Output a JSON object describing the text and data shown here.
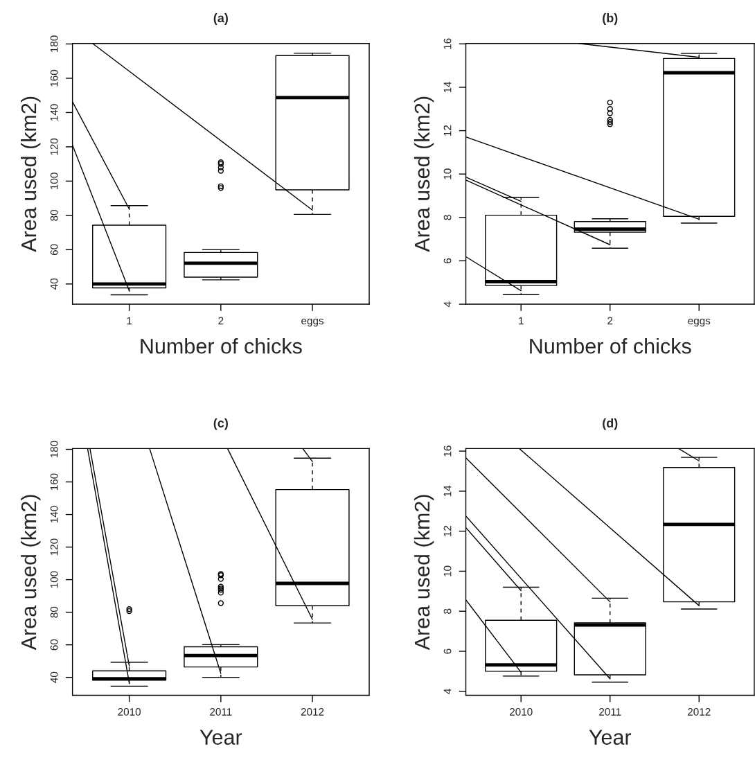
{
  "chart_data": [
    {
      "type": "box",
      "title": "(a)",
      "xlabel": "Number of chicks",
      "ylabel": "Area used (km2)",
      "x": [
        1,
        2,
        3
      ],
      "xlim": [
        0.38,
        3.62
      ],
      "xticks": [
        {
          "value": 1,
          "label": "1"
        },
        {
          "value": 2,
          "label": "2"
        },
        {
          "value": 3,
          "label": "eggs"
        }
      ],
      "ylim": [
        28.2,
        180.3
      ],
      "yticks": [
        40,
        60,
        80,
        100,
        120,
        140,
        160,
        180
      ],
      "boxes": [
        {
          "low": 33.7,
          "q1": 37.7,
          "median": 40,
          "q3": 74.3,
          "high": 85.7
        },
        {
          "low": 42.4,
          "q1": 44,
          "median": 52.1,
          "q3": 58.4,
          "high": 60,
          "outliers": [
            111,
            110,
            108,
            106,
            97,
            96
          ]
        },
        {
          "low": 80.6,
          "q1": 94.9,
          "median": 148.7,
          "q3": 173.2,
          "high": 174.6
        }
      ],
      "series": [
        {
          "type": "line",
          "color": "#000000",
          "x": [
            0.6,
            3
          ],
          "values": [
            180.3,
            83.1
          ]
        },
        {
          "type": "line",
          "color": "#000000",
          "x": [
            0.38,
            1
          ],
          "values": [
            146.3,
            83.7
          ]
        },
        {
          "type": "line",
          "color": "#000000",
          "x": [
            0.38,
            1
          ],
          "values": [
            121,
            36
          ]
        }
      ]
    },
    {
      "type": "box",
      "title": "(b)",
      "xlabel": "Number of chicks",
      "ylabel": "Area used (km2)",
      "x": [
        1,
        2,
        3
      ],
      "xlim": [
        0.38,
        3.62
      ],
      "xticks": [
        {
          "value": 1,
          "label": "1"
        },
        {
          "value": 2,
          "label": "2"
        },
        {
          "value": 3,
          "label": "eggs"
        }
      ],
      "ylim": [
        4,
        16.02
      ],
      "yticks": [
        4,
        6,
        8,
        10,
        12,
        14,
        16
      ],
      "boxes": [
        {
          "low": 4.44,
          "q1": 4.86,
          "median": 5.04,
          "q3": 8.1,
          "high": 8.92
        },
        {
          "low": 6.58,
          "q1": 7.32,
          "median": 7.46,
          "q3": 7.81,
          "high": 7.94,
          "outliers": [
            13.3,
            13.0,
            12.8,
            12.5,
            12.4,
            12.3
          ]
        },
        {
          "low": 7.74,
          "q1": 8.05,
          "median": 14.67,
          "q3": 15.33,
          "high": 15.56
        }
      ],
      "series": [
        {
          "type": "line",
          "color": "#000000",
          "x": [
            1.65,
            3
          ],
          "values": [
            16.02,
            15.38
          ]
        },
        {
          "type": "line",
          "color": "#000000",
          "x": [
            0.38,
            3
          ],
          "values": [
            11.71,
            7.92
          ]
        },
        {
          "type": "line",
          "color": "#000000",
          "x": [
            0.38,
            1
          ],
          "values": [
            9.86,
            8.74
          ]
        },
        {
          "type": "line",
          "color": "#000000",
          "x": [
            0.38,
            2
          ],
          "values": [
            9.72,
            6.74
          ]
        },
        {
          "type": "line",
          "color": "#000000",
          "x": [
            0.38,
            1
          ],
          "values": [
            6.19,
            4.62
          ]
        }
      ]
    },
    {
      "type": "box",
      "title": "(c)",
      "xlabel": "Year",
      "ylabel": "Area used (km2)",
      "x": [
        2010,
        2011,
        2012
      ],
      "xlim": [
        2009.38,
        2012.62
      ],
      "xticks": [
        2010,
        2011,
        2012
      ],
      "ylim": [
        29,
        180.5
      ],
      "yticks": [
        40,
        60,
        80,
        100,
        120,
        140,
        160,
        180
      ],
      "boxes": [
        {
          "low": 34.6,
          "q1": 38.3,
          "median": 39.1,
          "q3": 44,
          "high": 49.3,
          "outliers": [
            81.9,
            80.7
          ]
        },
        {
          "low": 40,
          "q1": 46.4,
          "median": 53.4,
          "q3": 58.8,
          "high": 60.1,
          "outliers": [
            103.5,
            102.7,
            100.4,
            95.7,
            94.6,
            93.7,
            92.0,
            85.6
          ]
        },
        {
          "low": 73.4,
          "q1": 84,
          "median": 97.7,
          "q3": 155.3,
          "high": 174.6
        }
      ],
      "series": [
        {
          "type": "line",
          "color": "#000000",
          "x": [
            2009.545,
            2010
          ],
          "values": [
            180.5,
            36.6
          ]
        },
        {
          "type": "line",
          "color": "#000000",
          "x": [
            2009.571,
            2010
          ],
          "values": [
            180.5,
            47
          ]
        },
        {
          "type": "line",
          "color": "#000000",
          "x": [
            2010.222,
            2011
          ],
          "values": [
            180.5,
            42.4
          ]
        },
        {
          "type": "line",
          "color": "#000000",
          "x": [
            2011.073,
            2012
          ],
          "values": [
            180.5,
            75.6
          ]
        },
        {
          "type": "line",
          "color": "#000000",
          "x": [
            2011.894,
            2012
          ],
          "values": [
            180.5,
            172.5
          ]
        }
      ]
    },
    {
      "type": "box",
      "title": "(d)",
      "xlabel": "Year",
      "ylabel": "Area used (km2)",
      "x": [
        2010,
        2011,
        2012
      ],
      "xlim": [
        2009.38,
        2012.62
      ],
      "xticks": [
        2010,
        2011,
        2012
      ],
      "ylim": [
        3.8,
        16.13
      ],
      "yticks": [
        4,
        6,
        8,
        10,
        12,
        14,
        16
      ],
      "boxes": [
        {
          "low": 4.76,
          "q1": 5.0,
          "median": 5.32,
          "q3": 7.55,
          "high": 9.2
        },
        {
          "low": 4.46,
          "q1": 4.82,
          "median": 7.31,
          "q3": 7.42,
          "high": 8.65
        },
        {
          "low": 8.11,
          "q1": 8.47,
          "median": 12.34,
          "q3": 15.18,
          "high": 15.69
        }
      ],
      "series": [
        {
          "type": "line",
          "color": "#000000",
          "x": [
            2009.38,
            2010
          ],
          "values": [
            8.57,
            4.95
          ]
        },
        {
          "type": "line",
          "color": "#000000",
          "x": [
            2009.38,
            2010
          ],
          "values": [
            12.18,
            9.03
          ]
        },
        {
          "type": "line",
          "color": "#000000",
          "x": [
            2009.38,
            2011
          ],
          "values": [
            12.76,
            4.62
          ]
        },
        {
          "type": "line",
          "color": "#000000",
          "x": [
            2009.38,
            2011
          ],
          "values": [
            15.67,
            8.47
          ]
        },
        {
          "type": "line",
          "color": "#000000",
          "x": [
            2009.98,
            2012
          ],
          "values": [
            16.13,
            8.28
          ]
        },
        {
          "type": "line",
          "color": "#000000",
          "x": [
            2011.77,
            2012
          ],
          "values": [
            16.13,
            15.51
          ]
        }
      ]
    }
  ]
}
